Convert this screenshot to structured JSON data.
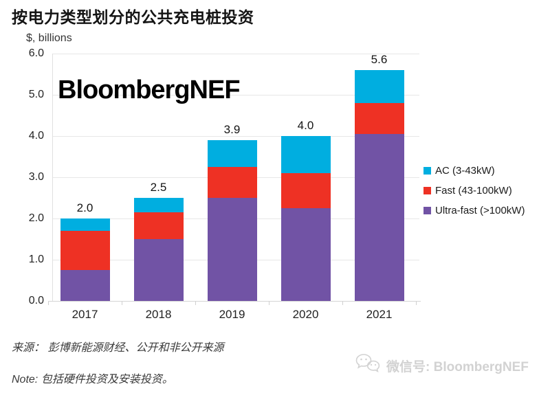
{
  "title": "按电力类型划分的公共充电桩投资",
  "units_label": "$, billions",
  "brand_logo": "BloombergNEF",
  "source_line": "来源： 彭博新能源财经、公开和非公开来源",
  "note_line": "Note: 包括硬件投资及安装投资。",
  "wechat_label": "微信号: BloombergNEF",
  "colors": {
    "ac_blue": "#00AEE0",
    "fast_red": "#EE3124",
    "ultrafast_purple": "#7153A5",
    "gridline": "#e7e7e7",
    "watermark_gray": "#d2d2d2"
  },
  "chart_data": {
    "type": "bar",
    "stacked": true,
    "title": "按电力类型划分的公共充电桩投资",
    "ylabel": "$, billions",
    "xlabel": "",
    "categories": [
      "2017",
      "2018",
      "2019",
      "2020",
      "2021"
    ],
    "series": [
      {
        "name": "Ultra-fast (>100kW)",
        "color": "#7153A5",
        "values": [
          0.75,
          1.5,
          2.5,
          2.25,
          4.05
        ]
      },
      {
        "name": "Fast (43-100kW)",
        "color": "#EE3124",
        "values": [
          0.95,
          0.65,
          0.75,
          0.85,
          0.75
        ]
      },
      {
        "name": "AC (3-43kW)",
        "color": "#00AEE0",
        "values": [
          0.3,
          0.35,
          0.65,
          0.9,
          0.8
        ]
      }
    ],
    "totals": [
      2.0,
      2.5,
      3.9,
      4.0,
      5.6
    ],
    "total_labels": [
      "2.0",
      "2.5",
      "3.9",
      "4.0",
      "5.6"
    ],
    "ylim": [
      0,
      6
    ],
    "ytick_labels": [
      "0.0",
      "1.0",
      "2.0",
      "3.0",
      "4.0",
      "5.0",
      "6.0"
    ],
    "grid": true,
    "legend_position": "right",
    "legend": [
      {
        "label": "AC (3-43kW)",
        "color": "#00AEE0"
      },
      {
        "label": "Fast (43-100kW)",
        "color": "#EE3124"
      },
      {
        "label": "Ultra-fast (>100kW)",
        "color": "#7153A5"
      }
    ]
  }
}
